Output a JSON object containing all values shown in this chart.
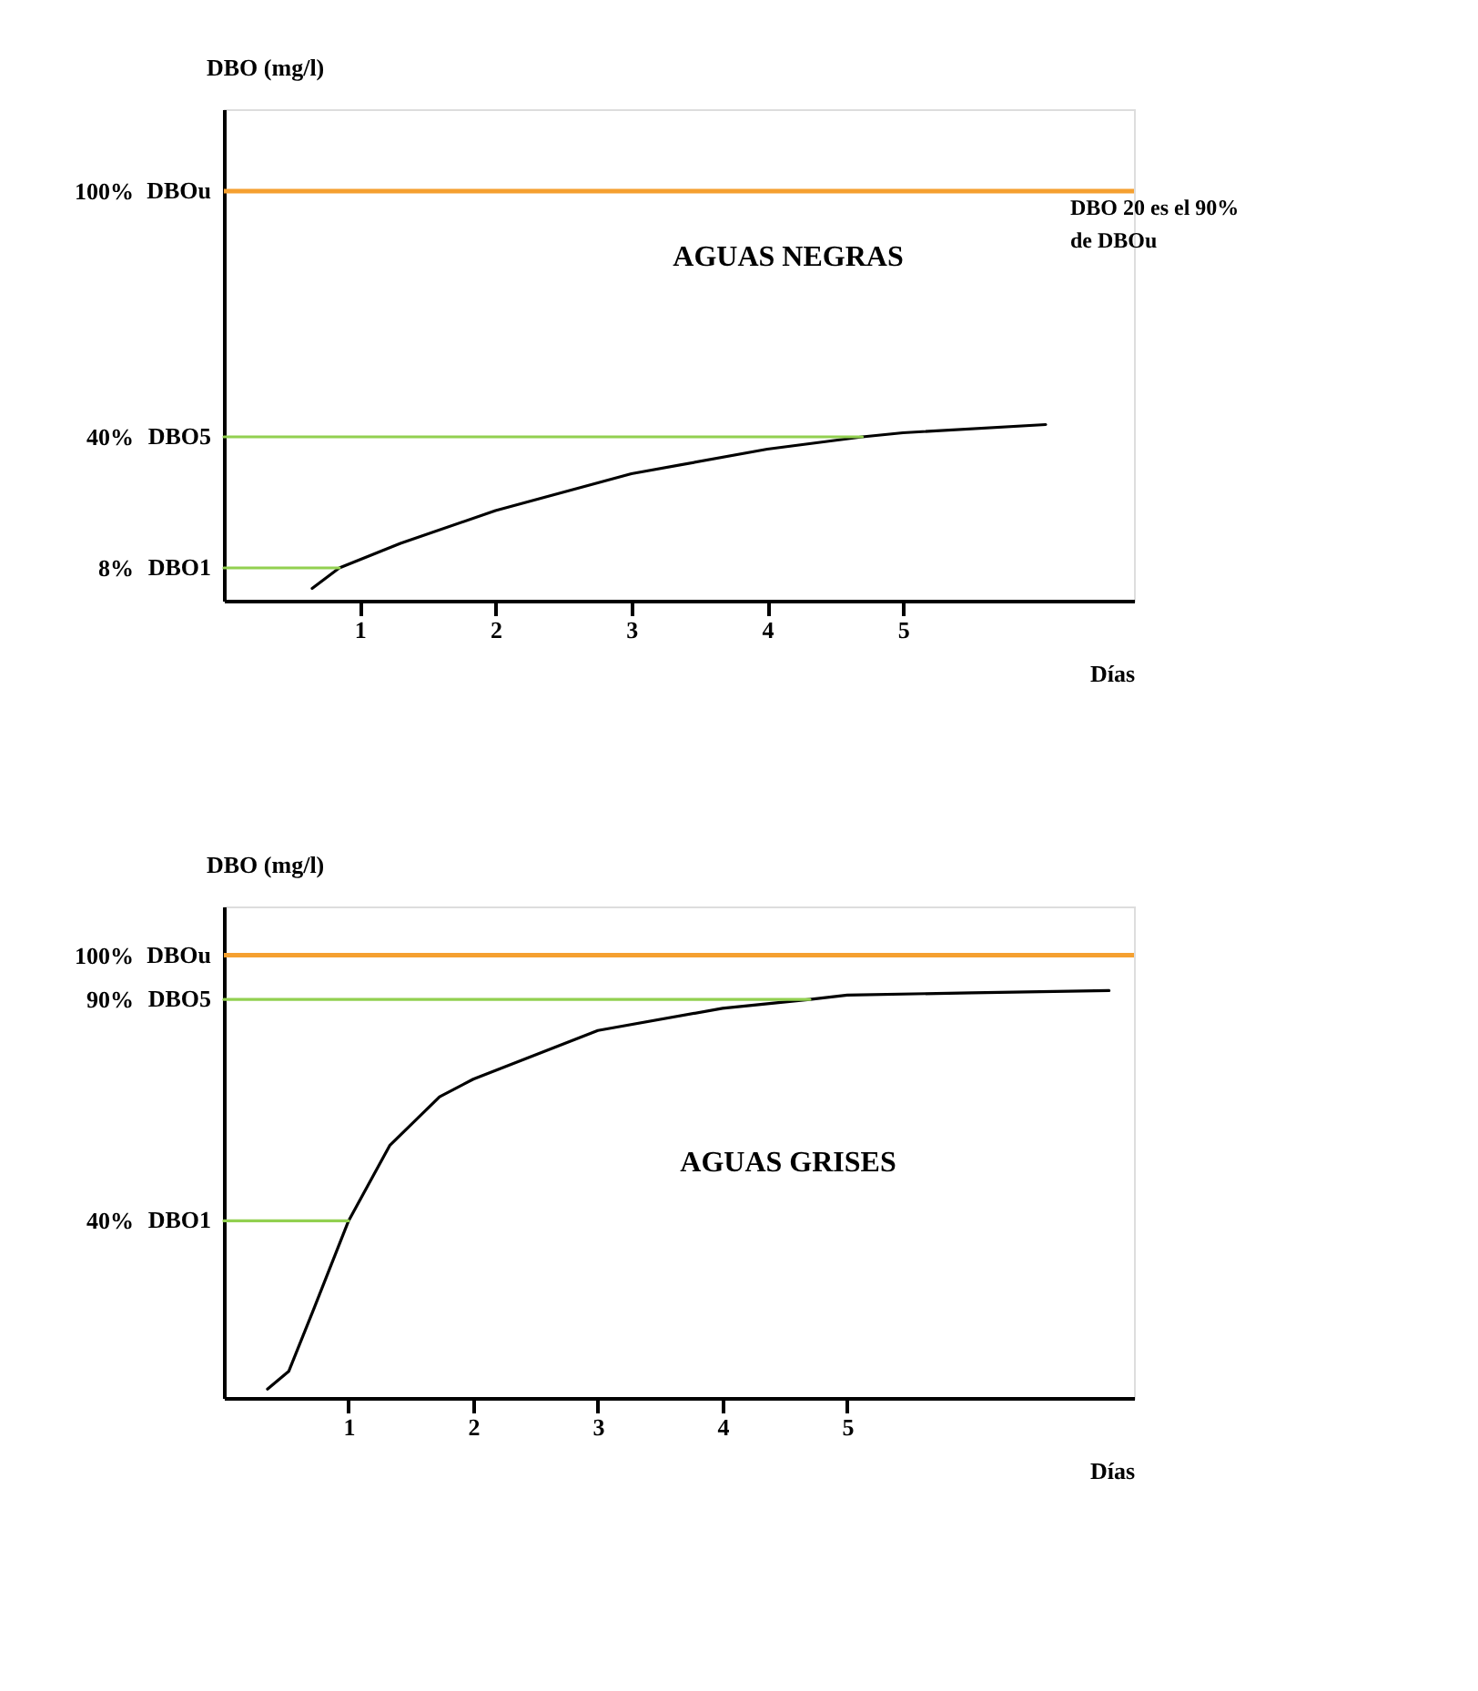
{
  "chart_data": [
    {
      "type": "line",
      "xlabel": "Días",
      "ylabel": "DBO (mg/l)",
      "annotations": [
        "AGUAS NEGRAS",
        "DBO 20 es el 90% de DBOu",
        "DBO1",
        "DBO5",
        "DBOu"
      ],
      "xlim": [
        0,
        6.7
      ],
      "ylim": [
        0,
        120
      ],
      "xticks": [
        1,
        2,
        3,
        4,
        5
      ],
      "yticks": [
        {
          "value": 8,
          "label": "8%"
        },
        {
          "value": 40,
          "label": "40%"
        },
        {
          "value": 100,
          "label": "100%"
        }
      ],
      "grid": false,
      "legend": false,
      "series": [
        {
          "color": "#000000",
          "x": [
            0.65,
            0.85,
            1.3,
            2,
            3,
            4,
            4.7,
            5,
            6.05
          ],
          "values": [
            3,
            8,
            14,
            22,
            31,
            37,
            40,
            41,
            43
          ]
        },
        {
          "color": "#92d050",
          "x": [
            0,
            0.85
          ],
          "values": [
            8,
            8
          ]
        },
        {
          "color": "#92d050",
          "x": [
            0,
            4.7
          ],
          "values": [
            40,
            40
          ]
        }
      ],
      "ref_lines": [
        {
          "axis": "y",
          "value": 100,
          "color": "#f5a030"
        }
      ]
    },
    {
      "type": "line",
      "xlabel": "Días",
      "ylabel": "DBO (mg/l)",
      "annotations": [
        "AGUAS GRISES",
        "DBO1",
        "DBO5",
        "DBOu"
      ],
      "xlim": [
        0,
        7.3
      ],
      "ylim": [
        0,
        111
      ],
      "xticks": [
        1,
        2,
        3,
        4,
        5
      ],
      "yticks": [
        {
          "value": 40,
          "label": "40%"
        },
        {
          "value": 90,
          "label": "90%"
        },
        {
          "value": 100,
          "label": "100%"
        }
      ],
      "grid": false,
      "legend": false,
      "series": [
        {
          "color": "#000000",
          "x": [
            0.35,
            0.52,
            0.72,
            1,
            1.33,
            1.73,
            2,
            3,
            4,
            4.7,
            5,
            6,
            7.1
          ],
          "values": [
            2,
            6,
            20,
            40,
            57,
            68,
            72,
            83,
            88,
            90,
            91,
            91.5,
            92
          ]
        },
        {
          "color": "#92d050",
          "x": [
            0,
            1
          ],
          "values": [
            40,
            40
          ]
        },
        {
          "color": "#92d050",
          "x": [
            0,
            4.7
          ],
          "values": [
            90,
            90
          ]
        }
      ],
      "ref_lines": [
        {
          "axis": "y",
          "value": 100,
          "color": "#f5a030"
        }
      ]
    }
  ]
}
